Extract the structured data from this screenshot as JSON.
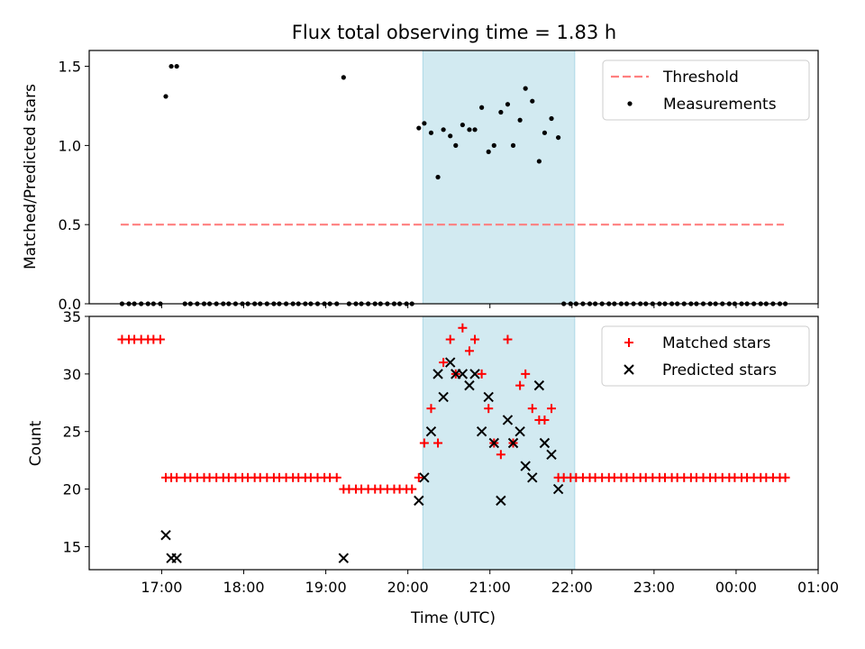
{
  "chart_data": [
    {
      "type": "scatter",
      "title": "Flux total observing time = 1.83 h",
      "xlabel": "",
      "ylabel": "Matched/Predicted stars",
      "xlim": [
        "16:07",
        "01:00"
      ],
      "ylim": [
        0,
        1.6
      ],
      "yticks": [
        "0.0",
        "0.5",
        "1.0",
        "1.5"
      ],
      "grid": false,
      "legend_position": "top-right",
      "highlight_span": {
        "x": [
          "20:11",
          "22:02"
        ],
        "color": "#add8e6"
      },
      "series": [
        {
          "name": "Threshold",
          "kind": "dashed-line",
          "color": "#ff7f7f",
          "x": [
            "16:30",
            "00:35"
          ],
          "y": [
            0.5,
            0.5
          ]
        },
        {
          "name": "Measurements",
          "kind": "points",
          "color": "#000000",
          "x": [
            "16:31",
            "16:36",
            "16:40",
            "16:45",
            "16:50",
            "16:54",
            "16:59",
            "17:03",
            "17:07",
            "17:11",
            "17:17",
            "17:21",
            "17:26",
            "17:31",
            "17:35",
            "17:40",
            "17:45",
            "17:49",
            "17:54",
            "17:59",
            "18:03",
            "18:08",
            "18:12",
            "18:17",
            "18:22",
            "18:26",
            "18:31",
            "18:36",
            "18:40",
            "18:45",
            "18:49",
            "18:54",
            "18:59",
            "19:03",
            "19:08",
            "19:13",
            "19:17",
            "19:22",
            "19:26",
            "19:31",
            "19:36",
            "19:40",
            "19:45",
            "19:50",
            "19:54",
            "19:59",
            "20:03",
            "20:08",
            "20:12",
            "20:17",
            "20:22",
            "20:26",
            "20:31",
            "20:35",
            "20:40",
            "20:45",
            "20:49",
            "20:54",
            "20:59",
            "21:03",
            "21:08",
            "21:13",
            "21:17",
            "21:22",
            "21:26",
            "21:31",
            "21:36",
            "21:40",
            "21:45",
            "21:50",
            "21:54",
            "21:59",
            "22:03",
            "22:08",
            "22:13",
            "22:17",
            "22:22",
            "22:27",
            "22:31",
            "22:36",
            "22:40",
            "22:45",
            "22:50",
            "22:54",
            "22:59",
            "23:04",
            "23:08",
            "23:13",
            "23:17",
            "23:22",
            "23:27",
            "23:31",
            "23:36",
            "23:41",
            "23:45",
            "23:50",
            "23:55",
            "23:59",
            "00:04",
            "00:08",
            "00:13",
            "00:18",
            "00:22",
            "00:27",
            "00:32",
            "00:36"
          ],
          "y": [
            0,
            0,
            0,
            0,
            0,
            0,
            0,
            1.31,
            1.5,
            1.5,
            0,
            0,
            0,
            0,
            0,
            0,
            0,
            0,
            0,
            0,
            0,
            0,
            0,
            0,
            0,
            0,
            0,
            0,
            0,
            0,
            0,
            0,
            0,
            0,
            0,
            1.43,
            0,
            0,
            0,
            0,
            0,
            0,
            0,
            0,
            0,
            0,
            0,
            1.11,
            1.14,
            1.08,
            0.8,
            1.1,
            1.06,
            1.0,
            1.13,
            1.1,
            1.1,
            1.24,
            0.96,
            1.0,
            1.21,
            1.26,
            1.0,
            1.16,
            1.36,
            1.28,
            0.9,
            1.08,
            1.17,
            1.05,
            0,
            0,
            0,
            0,
            0,
            0,
            0,
            0,
            0,
            0,
            0,
            0,
            0,
            0,
            0,
            0,
            0,
            0,
            0,
            0,
            0,
            0,
            0,
            0,
            0,
            0,
            0,
            0,
            0,
            0,
            0,
            0,
            0,
            0,
            0,
            0
          ]
        }
      ]
    },
    {
      "type": "scatter",
      "title": "",
      "xlabel": "Time (UTC)",
      "ylabel": "Count",
      "xlim": [
        "16:07",
        "01:00"
      ],
      "ylim": [
        13,
        35
      ],
      "xticks": [
        "17:00",
        "18:00",
        "19:00",
        "20:00",
        "21:00",
        "22:00",
        "23:00",
        "00:00",
        "01:00"
      ],
      "yticks": [
        "15",
        "20",
        "25",
        "30",
        "35"
      ],
      "grid": false,
      "legend_position": "top-right",
      "highlight_span": {
        "x": [
          "20:11",
          "22:02"
        ],
        "color": "#add8e6"
      },
      "series": [
        {
          "name": "Matched stars",
          "marker": "plus",
          "color": "#ff0000",
          "x": [
            "16:31",
            "16:36",
            "16:40",
            "16:45",
            "16:50",
            "16:54",
            "16:59",
            "17:03",
            "17:07",
            "17:11",
            "17:17",
            "17:21",
            "17:26",
            "17:31",
            "17:35",
            "17:40",
            "17:45",
            "17:49",
            "17:54",
            "17:59",
            "18:03",
            "18:08",
            "18:12",
            "18:17",
            "18:22",
            "18:26",
            "18:31",
            "18:36",
            "18:40",
            "18:45",
            "18:49",
            "18:54",
            "18:59",
            "19:03",
            "19:08",
            "19:13",
            "19:17",
            "19:22",
            "19:26",
            "19:31",
            "19:36",
            "19:40",
            "19:45",
            "19:50",
            "19:54",
            "19:59",
            "20:03",
            "20:08",
            "20:12",
            "20:17",
            "20:22",
            "20:26",
            "20:31",
            "20:35",
            "20:40",
            "20:45",
            "20:49",
            "20:54",
            "20:59",
            "21:03",
            "21:08",
            "21:13",
            "21:17",
            "21:22",
            "21:26",
            "21:31",
            "21:36",
            "21:40",
            "21:45",
            "21:50",
            "21:54",
            "21:59",
            "22:03",
            "22:08",
            "22:13",
            "22:17",
            "22:22",
            "22:27",
            "22:31",
            "22:36",
            "22:40",
            "22:45",
            "22:50",
            "22:54",
            "22:59",
            "23:04",
            "23:08",
            "23:13",
            "23:17",
            "23:22",
            "23:27",
            "23:31",
            "23:36",
            "23:41",
            "23:45",
            "23:50",
            "23:55",
            "23:59",
            "00:04",
            "00:08",
            "00:13",
            "00:18",
            "00:22",
            "00:27",
            "00:32",
            "00:36"
          ],
          "y": [
            33,
            33,
            33,
            33,
            33,
            33,
            33,
            21,
            21,
            21,
            21,
            21,
            21,
            21,
            21,
            21,
            21,
            21,
            21,
            21,
            21,
            21,
            21,
            21,
            21,
            21,
            21,
            21,
            21,
            21,
            21,
            21,
            21,
            21,
            21,
            20,
            20,
            20,
            20,
            20,
            20,
            20,
            20,
            20,
            20,
            20,
            20,
            21,
            24,
            27,
            24,
            31,
            33,
            30,
            34,
            32,
            33,
            30,
            27,
            24,
            23,
            33,
            24,
            29,
            30,
            27,
            26,
            26,
            27,
            21,
            21,
            21,
            21,
            21,
            21,
            21,
            21,
            21,
            21,
            21,
            21,
            21,
            21,
            21,
            21,
            21,
            21,
            21,
            21,
            21,
            21,
            21,
            21,
            21,
            21,
            21,
            21,
            21,
            21,
            21,
            21,
            21,
            21,
            21,
            21,
            21
          ]
        },
        {
          "name": "Predicted stars",
          "marker": "x",
          "color": "#000000",
          "x": [
            "17:03",
            "17:07",
            "17:11",
            "19:13",
            "20:08",
            "20:12",
            "20:17",
            "20:22",
            "20:26",
            "20:31",
            "20:35",
            "20:40",
            "20:45",
            "20:49",
            "20:54",
            "20:59",
            "21:03",
            "21:08",
            "21:13",
            "21:17",
            "21:22",
            "21:26",
            "21:31",
            "21:36",
            "21:40",
            "21:45",
            "21:50",
            "21:54",
            "21:59",
            "22:03"
          ],
          "y": [
            16,
            14,
            14,
            14,
            19,
            21,
            25,
            30,
            28,
            31,
            30,
            30,
            29,
            30,
            25,
            28,
            24,
            19,
            26,
            24,
            25,
            22,
            21,
            29,
            24,
            23,
            20,
            null,
            null,
            null
          ]
        }
      ]
    }
  ]
}
